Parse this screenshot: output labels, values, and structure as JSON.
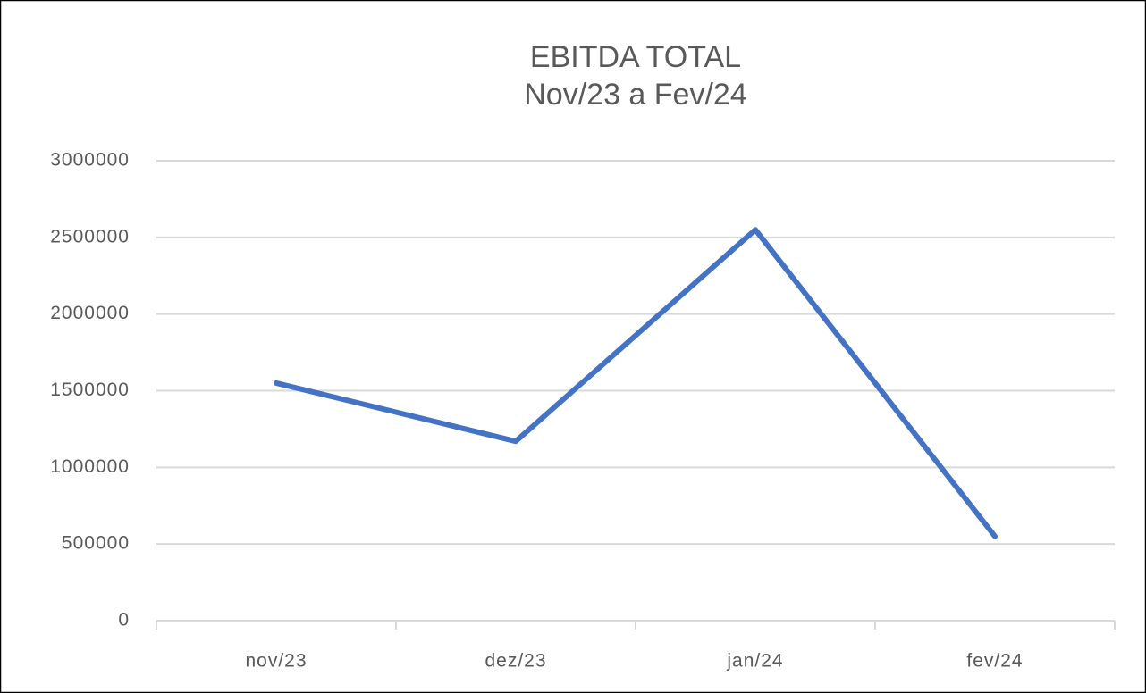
{
  "chart_data": {
    "type": "line",
    "title": "EBITDA TOTAL",
    "subtitle": "Nov/23 a Fev/24",
    "categories": [
      "nov/23",
      "dez/23",
      "jan/24",
      "fev/24"
    ],
    "series": [
      {
        "name": "EBITDA",
        "color": "#4472c4",
        "values": [
          1550000,
          1170000,
          2550000,
          550000
        ]
      }
    ],
    "ylim": [
      0,
      3000000
    ],
    "yticks": [
      0,
      500000,
      1000000,
      1500000,
      2000000,
      2500000,
      3000000
    ],
    "grid": true
  }
}
